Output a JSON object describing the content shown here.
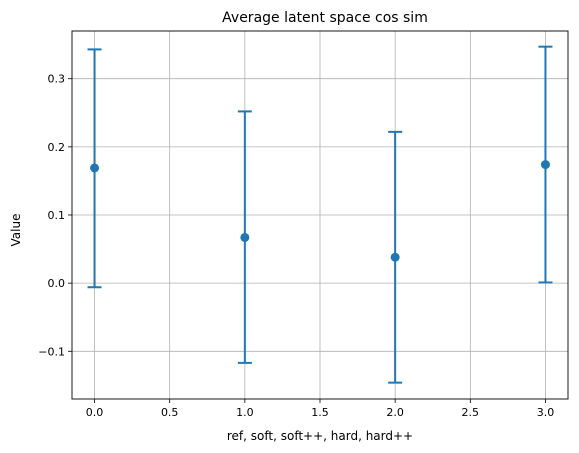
{
  "chart_data": {
    "type": "scatter",
    "title": "Average latent space cos sim",
    "xlabel": "ref, soft, soft++, hard, hard++",
    "ylabel": "Value",
    "xlim": [
      -0.15,
      3.15
    ],
    "ylim": [
      -0.17,
      0.37
    ],
    "x_ticks": [
      0.0,
      0.5,
      1.0,
      1.5,
      2.0,
      2.5,
      3.0
    ],
    "x_tick_labels": [
      "0.0",
      "0.5",
      "1.0",
      "1.5",
      "2.0",
      "2.5",
      "3.0"
    ],
    "y_ticks": [
      -0.1,
      0.0,
      0.1,
      0.2,
      0.3
    ],
    "y_tick_labels": [
      "−0.1",
      "0.0",
      "0.1",
      "0.2",
      "0.3"
    ],
    "grid": true,
    "series": [
      {
        "color": "#1f77b4",
        "x": [
          0,
          1,
          2,
          3
        ],
        "y": [
          0.169,
          0.067,
          0.038,
          0.174
        ],
        "lower": [
          -0.006,
          -0.117,
          -0.146,
          0.001
        ],
        "upper": [
          0.343,
          0.252,
          0.222,
          0.347
        ]
      }
    ]
  }
}
